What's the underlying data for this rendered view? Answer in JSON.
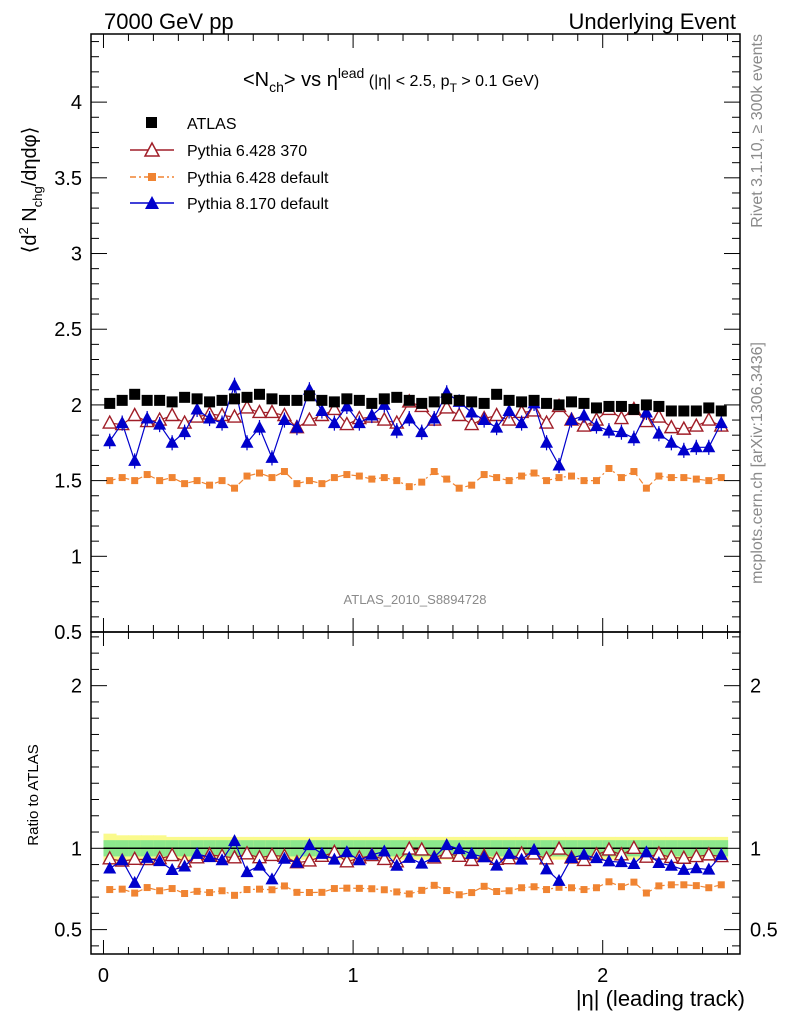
{
  "header": {
    "left": "7000 GeV pp",
    "right": "Underlying Event"
  },
  "side": {
    "rivet": "Rivet 3.1.10, ≥ 300k events",
    "mcplots": "mcplots.cern.ch [arXiv:1306.3436]"
  },
  "watermark": "ATLAS_2010_S8894728",
  "chart_data": [
    {
      "type": "scatter",
      "title": "<Nch> vs ηlead (|η| < 2.5, pT > 0.1 GeV)",
      "title_parts": {
        "p1": "<N",
        "p2": "ch",
        "p3": "> vs η",
        "p4": "lead",
        "p5": " (|η| < 2.5, p",
        "p6": "T",
        "p7": " > 0.1 GeV)"
      },
      "ylabel": "⟨d² Nchg/dηdφ⟩",
      "ylabel_parts": {
        "a": "⟨d",
        "b": "2",
        "c": " N",
        "d": "chg",
        "e": "/dηdφ⟩"
      },
      "xlim": [
        -0.05,
        2.55
      ],
      "ylim": [
        0.5,
        4.45
      ],
      "yticks": [
        0.5,
        1,
        1.5,
        2,
        2.5,
        3,
        3.5,
        4
      ],
      "ytick_labels": [
        "0.5",
        "1",
        "1.5",
        "2",
        "2.5",
        "3",
        "3.5",
        "4"
      ],
      "x": [
        0.025,
        0.075,
        0.125,
        0.175,
        0.225,
        0.275,
        0.325,
        0.375,
        0.425,
        0.475,
        0.525,
        0.575,
        0.625,
        0.675,
        0.725,
        0.775,
        0.825,
        0.875,
        0.925,
        0.975,
        1.025,
        1.075,
        1.125,
        1.175,
        1.225,
        1.275,
        1.325,
        1.375,
        1.425,
        1.475,
        1.525,
        1.575,
        1.625,
        1.675,
        1.725,
        1.775,
        1.825,
        1.875,
        1.925,
        1.975,
        2.025,
        2.075,
        2.125,
        2.175,
        2.225,
        2.275,
        2.325,
        2.375,
        2.425,
        2.475
      ],
      "legend_position": "top-left",
      "series": [
        {
          "name": "ATLAS",
          "color": "#000000",
          "marker": "square",
          "values": [
            2.01,
            2.03,
            2.07,
            2.03,
            2.03,
            2.02,
            2.05,
            2.04,
            2.02,
            2.03,
            2.04,
            2.05,
            2.07,
            2.04,
            2.03,
            2.03,
            2.06,
            2.03,
            2.02,
            2.04,
            2.03,
            2.01,
            2.04,
            2.05,
            2.03,
            2.01,
            2.02,
            2.04,
            2.03,
            2.02,
            2.01,
            2.07,
            2.03,
            2.02,
            2.03,
            2.01,
            2.0,
            2.02,
            2.01,
            1.98,
            1.99,
            1.99,
            1.97,
            2.0,
            1.99,
            1.96,
            1.96,
            1.96,
            1.98,
            1.96
          ]
        },
        {
          "name": "Pythia 6.428 370",
          "color": "#a01e28",
          "marker": "triangle-open",
          "values": [
            1.88,
            1.87,
            1.93,
            1.89,
            1.9,
            1.93,
            1.88,
            1.92,
            1.94,
            1.93,
            1.92,
            1.98,
            1.95,
            1.95,
            1.93,
            1.85,
            1.9,
            1.93,
            1.97,
            1.87,
            1.91,
            1.92,
            1.9,
            1.88,
            2.02,
            1.99,
            1.9,
            1.98,
            1.93,
            1.87,
            1.91,
            1.93,
            1.9,
            1.95,
            1.96,
            1.88,
            1.99,
            1.9,
            1.86,
            1.9,
            1.97,
            1.91,
            1.97,
            1.89,
            1.92,
            1.85,
            1.84,
            1.86,
            1.9,
            1.86
          ]
        },
        {
          "name": "Pythia 6.428 default",
          "color": "#f08432",
          "marker": "square-small",
          "values": [
            1.5,
            1.52,
            1.5,
            1.54,
            1.5,
            1.52,
            1.48,
            1.5,
            1.47,
            1.5,
            1.45,
            1.53,
            1.55,
            1.52,
            1.56,
            1.48,
            1.5,
            1.48,
            1.52,
            1.54,
            1.53,
            1.51,
            1.52,
            1.5,
            1.46,
            1.49,
            1.56,
            1.51,
            1.45,
            1.47,
            1.54,
            1.52,
            1.5,
            1.53,
            1.55,
            1.5,
            1.52,
            1.53,
            1.5,
            1.5,
            1.58,
            1.52,
            1.56,
            1.45,
            1.53,
            1.52,
            1.52,
            1.51,
            1.5,
            1.52
          ]
        },
        {
          "name": "Pythia 8.170 default",
          "color": "#0000cc",
          "marker": "triangle",
          "values": [
            1.76,
            1.88,
            1.63,
            1.91,
            1.87,
            1.75,
            1.82,
            1.97,
            1.91,
            1.88,
            2.13,
            1.75,
            1.85,
            1.65,
            1.9,
            1.85,
            2.1,
            1.96,
            1.88,
            1.99,
            1.88,
            1.93,
            2.0,
            1.83,
            1.91,
            1.82,
            1.91,
            2.08,
            2.02,
            1.95,
            1.9,
            1.85,
            1.96,
            1.88,
            2.01,
            1.75,
            1.6,
            1.9,
            1.93,
            1.86,
            1.83,
            1.82,
            1.78,
            1.95,
            1.81,
            1.75,
            1.7,
            1.72,
            1.72,
            1.88
          ]
        }
      ]
    },
    {
      "type": "scatter",
      "ylabel": "Ratio to ATLAS",
      "xlabel": "|η| (leading track)",
      "xlim": [
        -0.05,
        2.55
      ],
      "ylim": [
        0.35,
        2.33
      ],
      "xticks": [
        0,
        1,
        2
      ],
      "xtick_labels": [
        "0",
        "1",
        "2"
      ],
      "yticks": [
        0.5,
        1,
        2
      ],
      "ytick_labels": [
        "0.5",
        "1",
        "2"
      ],
      "band_colors": {
        "inner": "#8ce88c",
        "outer": "#fafa8c"
      },
      "band_inner": [
        0.05,
        0.05,
        0.05,
        0.05,
        0.05,
        0.05,
        0.05,
        0.05,
        0.05,
        0.05,
        0.05,
        0.05,
        0.05,
        0.05,
        0.05,
        0.05,
        0.05,
        0.05,
        0.05,
        0.05,
        0.05,
        0.05,
        0.05,
        0.05,
        0.05,
        0.05,
        0.05,
        0.05,
        0.05,
        0.05,
        0.05,
        0.05,
        0.05,
        0.05,
        0.05,
        0.05,
        0.05,
        0.05,
        0.05,
        0.05,
        0.05,
        0.05,
        0.05,
        0.05,
        0.05,
        0.05,
        0.05,
        0.05,
        0.05,
        0.05
      ],
      "band_outer": [
        0.09,
        0.08,
        0.08,
        0.08,
        0.08,
        0.07,
        0.07,
        0.07,
        0.07,
        0.07,
        0.07,
        0.07,
        0.07,
        0.07,
        0.07,
        0.07,
        0.07,
        0.07,
        0.07,
        0.07,
        0.07,
        0.07,
        0.07,
        0.07,
        0.07,
        0.07,
        0.07,
        0.07,
        0.07,
        0.07,
        0.07,
        0.07,
        0.07,
        0.07,
        0.07,
        0.07,
        0.07,
        0.07,
        0.07,
        0.07,
        0.07,
        0.07,
        0.07,
        0.07,
        0.07,
        0.07,
        0.07,
        0.07,
        0.07,
        0.07
      ]
    }
  ]
}
